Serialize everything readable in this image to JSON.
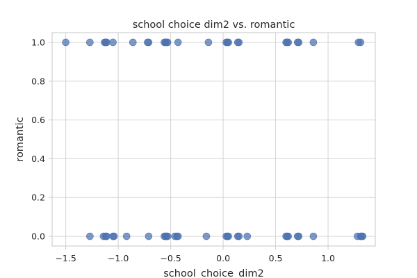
{
  "chart_data": {
    "type": "scatter",
    "title": "school choice dim2 vs. romantic",
    "xlabel": "school_choice_dim2",
    "ylabel": "romantic",
    "xlim": [
      -1.63,
      1.45
    ],
    "ylim": [
      -0.05,
      1.05
    ],
    "xticks": [
      -1.5,
      -1.0,
      -0.5,
      0.0,
      0.5,
      1.0
    ],
    "xtick_labels": [
      "−1.5",
      "−1.0",
      "−0.5",
      "0.0",
      "0.5",
      "1.0"
    ],
    "yticks": [
      0.0,
      0.2,
      0.4,
      0.6,
      0.8,
      1.0
    ],
    "ytick_labels": [
      "0.0",
      "0.2",
      "0.4",
      "0.6",
      "0.8",
      "1.0"
    ],
    "grid": true,
    "legend": false,
    "marker_color": "#4c72b0",
    "marker_alpha": 0.72,
    "points": [
      {
        "x": -1.5,
        "y": 1
      },
      {
        "x": -1.27,
        "y": 1
      },
      {
        "x": -1.13,
        "y": 1
      },
      {
        "x": -1.12,
        "y": 1
      },
      {
        "x": -1.11,
        "y": 1
      },
      {
        "x": -1.05,
        "y": 1
      },
      {
        "x": -0.86,
        "y": 1
      },
      {
        "x": -0.72,
        "y": 1
      },
      {
        "x": -0.71,
        "y": 1
      },
      {
        "x": -0.56,
        "y": 1
      },
      {
        "x": -0.55,
        "y": 1
      },
      {
        "x": -0.54,
        "y": 1
      },
      {
        "x": -0.53,
        "y": 1
      },
      {
        "x": -0.43,
        "y": 1
      },
      {
        "x": -0.14,
        "y": 1
      },
      {
        "x": 0.03,
        "y": 1
      },
      {
        "x": 0.04,
        "y": 1
      },
      {
        "x": 0.05,
        "y": 1
      },
      {
        "x": 0.14,
        "y": 1
      },
      {
        "x": 0.15,
        "y": 1
      },
      {
        "x": 0.6,
        "y": 1
      },
      {
        "x": 0.61,
        "y": 1
      },
      {
        "x": 0.62,
        "y": 1
      },
      {
        "x": 0.71,
        "y": 1
      },
      {
        "x": 0.72,
        "y": 1
      },
      {
        "x": 0.86,
        "y": 1
      },
      {
        "x": 1.29,
        "y": 1
      },
      {
        "x": 1.31,
        "y": 1
      },
      {
        "x": -1.27,
        "y": 0
      },
      {
        "x": -1.14,
        "y": 0
      },
      {
        "x": -1.12,
        "y": 0
      },
      {
        "x": -1.11,
        "y": 0
      },
      {
        "x": -1.05,
        "y": 0
      },
      {
        "x": -1.04,
        "y": 0
      },
      {
        "x": -0.92,
        "y": 0
      },
      {
        "x": -0.71,
        "y": 0
      },
      {
        "x": -0.56,
        "y": 0
      },
      {
        "x": -0.55,
        "y": 0
      },
      {
        "x": -0.54,
        "y": 0
      },
      {
        "x": -0.53,
        "y": 0
      },
      {
        "x": -0.46,
        "y": 0
      },
      {
        "x": -0.44,
        "y": 0
      },
      {
        "x": -0.43,
        "y": 0
      },
      {
        "x": -0.16,
        "y": 0
      },
      {
        "x": 0.03,
        "y": 0
      },
      {
        "x": 0.04,
        "y": 0
      },
      {
        "x": 0.05,
        "y": 0
      },
      {
        "x": 0.14,
        "y": 0
      },
      {
        "x": 0.15,
        "y": 0
      },
      {
        "x": 0.23,
        "y": 0
      },
      {
        "x": 0.6,
        "y": 0
      },
      {
        "x": 0.61,
        "y": 0
      },
      {
        "x": 0.62,
        "y": 0
      },
      {
        "x": 0.71,
        "y": 0
      },
      {
        "x": 0.72,
        "y": 0
      },
      {
        "x": 0.86,
        "y": 0
      },
      {
        "x": 1.28,
        "y": 0
      },
      {
        "x": 1.31,
        "y": 0
      },
      {
        "x": 1.32,
        "y": 0
      },
      {
        "x": 1.33,
        "y": 0
      }
    ]
  }
}
